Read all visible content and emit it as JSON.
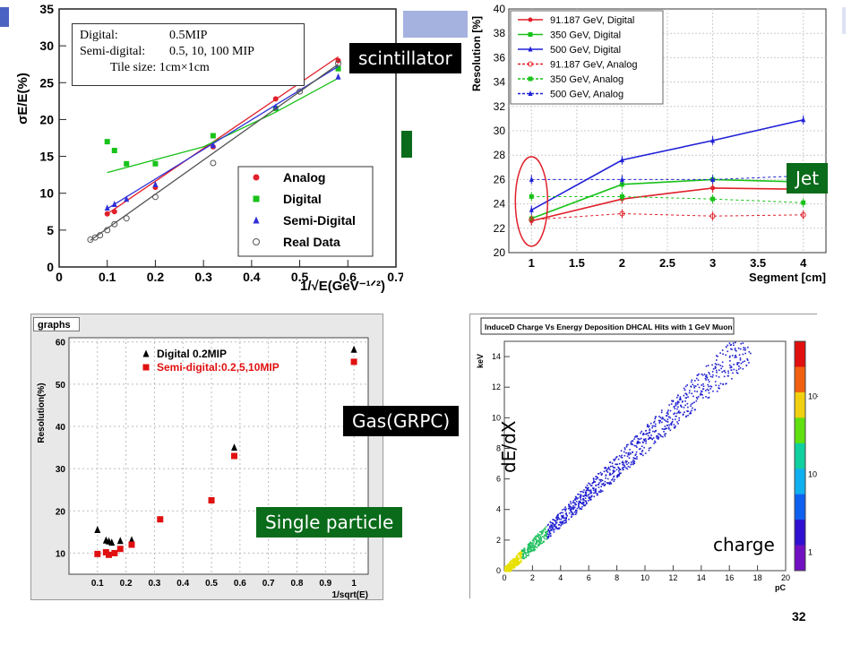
{
  "slide": {
    "page_number": "32",
    "labels": {
      "scintillator": "scintillator",
      "jet": "Jet",
      "gas": "Gas(GRPC)",
      "single_particle": "Single particle",
      "dedx": "dE/dX",
      "charge": "charge"
    }
  },
  "chart_data": [
    {
      "id": "scintillator",
      "type": "scatter",
      "xlabel": "1/√E(GeV⁻¹ᐟ²)",
      "ylabel": "σE/E(%)",
      "xlim": [
        0,
        0.7
      ],
      "ylim": [
        0,
        35
      ],
      "xticks": [
        "0",
        "0.1",
        "0.2",
        "0.3",
        "0.4",
        "0.5",
        "0.6",
        "0.7"
      ],
      "yticks": [
        "0",
        "5",
        "10",
        "15",
        "20",
        "25",
        "30",
        "35"
      ],
      "info_box": [
        "Digital:",
        "0.5MIP",
        "Semi-digital:",
        "0.5, 10, 100 MIP",
        "Tile size: 1cm×1cm"
      ],
      "legend": [
        "Analog",
        "Digital",
        "Semi-Digital",
        "Real Data"
      ],
      "series": [
        {
          "name": "Analog",
          "color": "#e0202a",
          "marker": "circle",
          "x": [
            0.1,
            0.115,
            0.2,
            0.32,
            0.45,
            0.58
          ],
          "y": [
            7.2,
            7.5,
            10.8,
            16.3,
            22.8,
            28.0
          ],
          "fit": [
            [
              0.1,
              7.2
            ],
            [
              0.58,
              28.5
            ]
          ]
        },
        {
          "name": "Digital",
          "color": "#19c219",
          "marker": "square",
          "x": [
            0.1,
            0.115,
            0.14,
            0.2,
            0.32,
            0.45,
            0.58
          ],
          "y": [
            17.0,
            15.8,
            14.0,
            14.0,
            17.8,
            21.5,
            26.9
          ],
          "fit": [
            [
              0.1,
              12.8
            ],
            [
              0.3,
              16.3
            ],
            [
              0.45,
              21.0
            ],
            [
              0.58,
              25.6
            ]
          ]
        },
        {
          "name": "Semi-Digital",
          "color": "#3030d8",
          "marker": "triangle",
          "x": [
            0.1,
            0.115,
            0.14,
            0.2,
            0.32,
            0.45,
            0.58
          ],
          "y": [
            8.0,
            8.5,
            9.2,
            11.2,
            16.5,
            21.7,
            25.8
          ],
          "fit": [
            [
              0.1,
              7.9
            ],
            [
              0.58,
              27.2
            ]
          ]
        },
        {
          "name": "Real Data",
          "color": "#555555",
          "marker": "open-circle",
          "x": [
            0.065,
            0.075,
            0.085,
            0.1,
            0.115,
            0.14,
            0.2,
            0.32,
            0.5,
            0.58
          ],
          "y": [
            3.7,
            4.0,
            4.3,
            5.0,
            5.8,
            6.6,
            9.5,
            14.1,
            23.8,
            27.6
          ],
          "fit": [
            [
              0.065,
              3.6
            ],
            [
              0.58,
              27.5
            ]
          ]
        }
      ]
    },
    {
      "id": "jet",
      "type": "line",
      "xlabel": "Segment [cm]",
      "ylabel": "Resolution [%]",
      "xlim": [
        0.75,
        4.25
      ],
      "ylim": [
        20,
        40
      ],
      "xticks": [
        "1",
        "1.5",
        "2",
        "2.5",
        "3",
        "3.5",
        "4"
      ],
      "yticks": [
        "20",
        "22",
        "24",
        "26",
        "28",
        "30",
        "32",
        "34",
        "36",
        "38",
        "40"
      ],
      "x": [
        1,
        2,
        3,
        4
      ],
      "series": [
        {
          "name": "91.187 GeV, Digital",
          "color": "#e0202a",
          "dashed": false,
          "y": [
            22.6,
            24.4,
            25.3,
            25.2
          ]
        },
        {
          "name": "350 GeV, Digital",
          "color": "#19c219",
          "dashed": false,
          "y": [
            22.8,
            25.6,
            26.0,
            25.8
          ]
        },
        {
          "name": "500 GeV, Digital",
          "color": "#2020d8",
          "dashed": false,
          "y": [
            23.5,
            27.6,
            29.2,
            30.9
          ]
        },
        {
          "name": "91.187 GeV, Analog",
          "color": "#e0202a",
          "dashed": true,
          "y": [
            22.7,
            23.2,
            23.0,
            23.1
          ]
        },
        {
          "name": "350 GeV, Analog",
          "color": "#19c219",
          "dashed": true,
          "y": [
            24.6,
            24.6,
            24.4,
            24.1
          ]
        },
        {
          "name": "500 GeV, Analog",
          "color": "#2020d8",
          "dashed": true,
          "y": [
            26.0,
            26.0,
            26.0,
            26.3
          ]
        }
      ]
    },
    {
      "id": "gas",
      "type": "scatter",
      "header": "graphs",
      "xlabel": "1/sqrt(E)",
      "ylabel": "Resolution(%)",
      "xlim": [
        0,
        1.05
      ],
      "ylim": [
        5,
        61
      ],
      "xticks": [
        "0.1",
        "0.2",
        "0.3",
        "0.4",
        "0.5",
        "0.6",
        "0.7",
        "0.8",
        "0.9",
        "1"
      ],
      "yticks": [
        "10",
        "20",
        "30",
        "40",
        "50",
        "60"
      ],
      "series": [
        {
          "name": "Digital 0.2MIP",
          "color": "#000000",
          "marker": "triangle",
          "x": [
            0.1,
            0.13,
            0.14,
            0.15,
            0.18,
            0.22,
            0.58,
            1.0
          ],
          "y": [
            15.5,
            13.0,
            12.8,
            12.5,
            12.9,
            13.1,
            35.0,
            58.2
          ]
        },
        {
          "name": "Semi-digital:0.2,5,10MIP",
          "color": "#e01010",
          "marker": "square",
          "x": [
            0.1,
            0.13,
            0.14,
            0.16,
            0.18,
            0.22,
            0.32,
            0.5,
            0.58,
            1.0
          ],
          "y": [
            9.8,
            10.2,
            9.6,
            10.0,
            11.0,
            12.0,
            18.0,
            22.5,
            33.0,
            55.3
          ]
        }
      ]
    },
    {
      "id": "charge",
      "type": "heatmap",
      "title": "InduceD Charge Vs Energy Deposition DHCAL Hits with 1 GeV Muon",
      "xlabel": "pC",
      "ylabel": "keV",
      "xlim": [
        0,
        20
      ],
      "ylim": [
        0,
        15
      ],
      "xticks": [
        "0",
        "2",
        "4",
        "6",
        "8",
        "10",
        "12",
        "14",
        "16",
        "18",
        "20"
      ],
      "yticks": [
        "0",
        "2",
        "4",
        "6",
        "8",
        "10",
        "12",
        "14"
      ],
      "colorbar_ticks": [
        "1",
        "10",
        "10²"
      ],
      "trend": {
        "slope": 0.86,
        "intercept": 0
      }
    }
  ]
}
